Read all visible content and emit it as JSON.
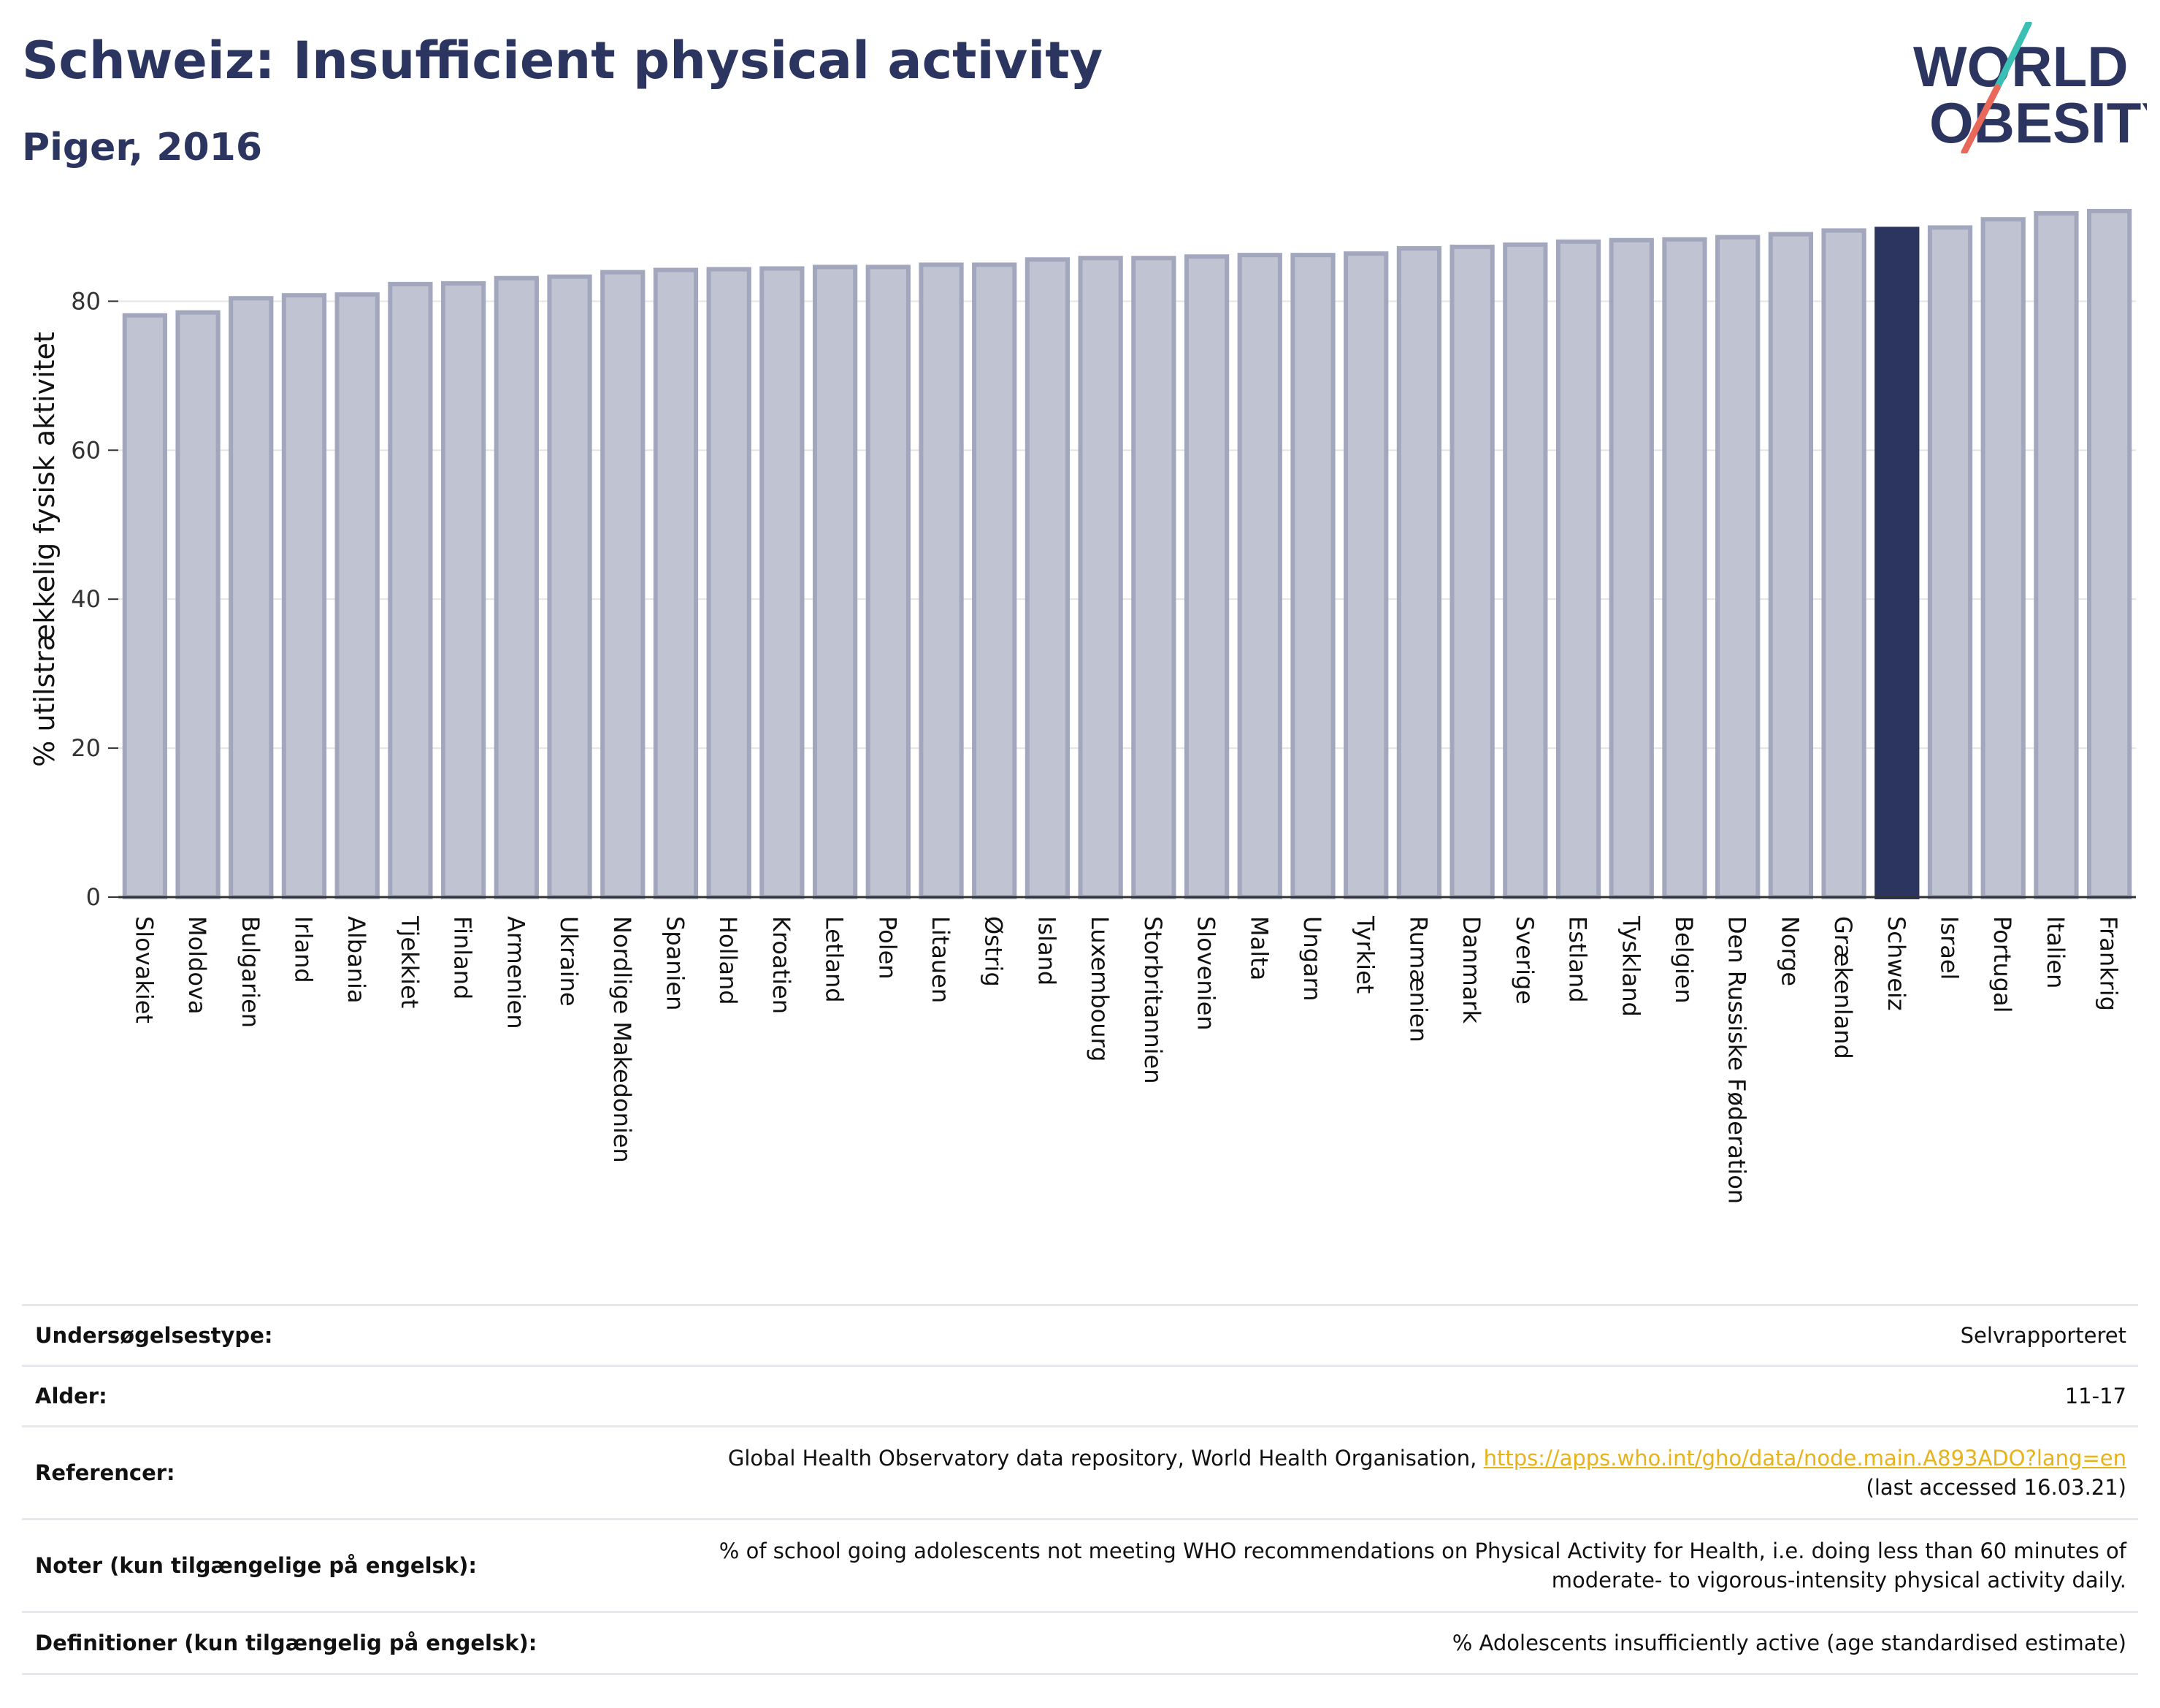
{
  "header": {
    "title": "Schweiz: Insufficient physical activity",
    "subtitle": "Piger, 2016"
  },
  "logo": {
    "line1": "WORLD",
    "line2": "OBESITY",
    "colors": {
      "text": "#2b3560",
      "slash_teal": "#3bbfb5",
      "slash_coral": "#e8685a"
    }
  },
  "colors": {
    "bar_fill": "#c0c3d1",
    "bar_stroke": "#a3a7bd",
    "highlight_fill": "#2b3560",
    "grid": "#e5e5e5",
    "axis": "#333333",
    "link": "#e8b21a"
  },
  "chart_data": {
    "type": "bar",
    "highlight": "Schweiz",
    "ylabel": "% utilstrækkelig fysisk aktivitet",
    "xlabel": "",
    "ylim": [
      0,
      92
    ],
    "yticks": [
      0,
      20,
      40,
      60,
      80
    ],
    "grid": true,
    "categories": [
      "Slovakiet",
      "Moldova",
      "Bulgarien",
      "Irland",
      "Albania",
      "Tjekkiet",
      "Finland",
      "Armenien",
      "Ukraine",
      "Nordlige Makedonien",
      "Spanien",
      "Holland",
      "Kroatien",
      "Letland",
      "Polen",
      "Litauen",
      "Østrig",
      "Island",
      "Luxembourg",
      "Storbritannien",
      "Slovenien",
      "Malta",
      "Ungarn",
      "Tyrkiet",
      "Rumænien",
      "Danmark",
      "Sverige",
      "Estland",
      "Tyskland",
      "Belgien",
      "Den Russiske Føderation",
      "Norge",
      "Grækenland",
      "Schweiz",
      "Israel",
      "Portugal",
      "Italien",
      "Frankrig"
    ],
    "values": [
      78.1,
      78.5,
      80.4,
      80.8,
      80.9,
      82.3,
      82.4,
      83.1,
      83.3,
      83.9,
      84.2,
      84.3,
      84.4,
      84.6,
      84.6,
      84.9,
      84.9,
      85.6,
      85.8,
      85.8,
      86.0,
      86.2,
      86.2,
      86.4,
      87.1,
      87.3,
      87.6,
      88.0,
      88.2,
      88.3,
      88.6,
      89.0,
      89.5,
      89.7,
      89.9,
      91.0,
      91.8,
      92.1
    ]
  },
  "meta": {
    "rows": [
      {
        "key": "Undersøgelsestype:",
        "value": "Selvrapporteret"
      },
      {
        "key": "Alder:",
        "value": "11-17"
      },
      {
        "key": "Referencer:",
        "value": "Global Health Observatory data repository, World Health Organisation, ",
        "link": "https://apps.who.int/gho/data/node.main.A893ADO?lang=en",
        "value2": "(last accessed 16.03.21)"
      },
      {
        "key": "Noter (kun tilgængelige på engelsk):",
        "value": "% of school going adolescents not meeting WHO recommendations on Physical Activity for Health, i.e. doing less than 60 minutes of",
        "value2": "moderate- to vigorous-intensity physical activity daily."
      },
      {
        "key": "Definitioner (kun tilgængelig på engelsk):",
        "value": "% Adolescents insufficiently active (age standardised estimate)"
      }
    ]
  }
}
